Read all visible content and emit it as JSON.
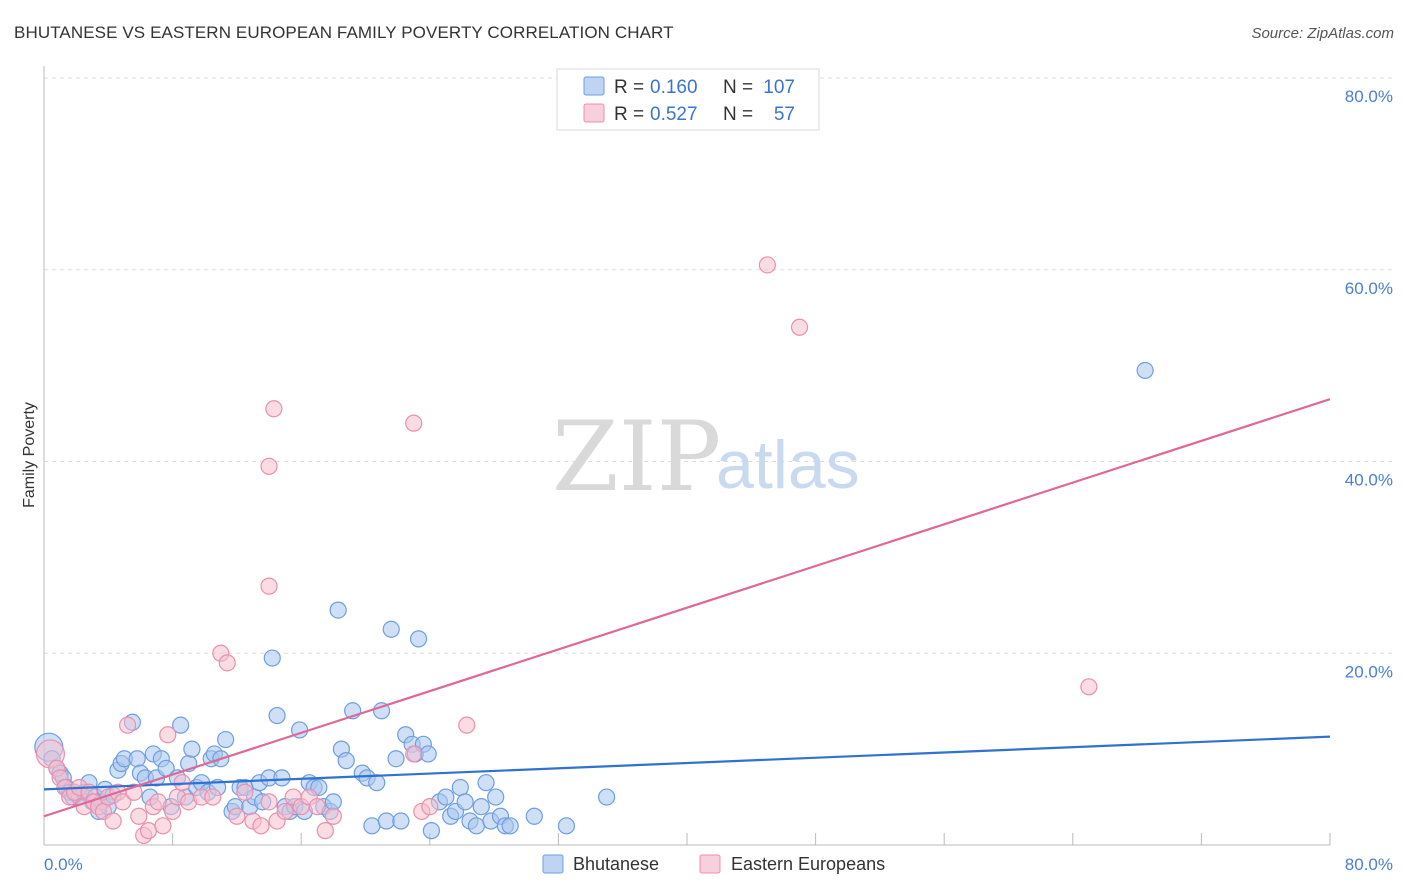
{
  "header": {
    "title": "BHUTANESE VS EASTERN EUROPEAN FAMILY POVERTY CORRELATION CHART",
    "source": "Source: ZipAtlas.com"
  },
  "watermark": {
    "zip": "ZIP",
    "atlas": "atlas"
  },
  "legend": {
    "r_label": "R =",
    "n_label": "N =",
    "rows": [
      {
        "name": "Bhutanese",
        "r": "0.160",
        "n": "107",
        "color": "#9dc0f0"
      },
      {
        "name": "Eastern Europeans",
        "r": "0.527",
        "n": "57",
        "color": "#f5b5c8"
      }
    ]
  },
  "colors": {
    "blue_fill": "#a8c6ee",
    "blue_stroke": "#6f9ee0",
    "blue_line": "#2f72d1",
    "pink_fill": "#f6bfd0",
    "pink_stroke": "#ec8fac",
    "pink_line": "#e06896",
    "tick_label": "#4a7fd4"
  },
  "chart_data": {
    "type": "scatter",
    "title": "BHUTANESE VS EASTERN EUROPEAN FAMILY POVERTY CORRELATION CHART",
    "xlabel": "",
    "ylabel": "Family Poverty",
    "xlim": [
      0,
      80
    ],
    "ylim": [
      0,
      80
    ],
    "x_tick_labels": [
      "0.0%",
      "80.0%"
    ],
    "y_ticks": [
      20,
      40,
      60,
      80
    ],
    "y_tick_labels": [
      "20.0%",
      "40.0%",
      "60.0%",
      "80.0%"
    ],
    "grid": true,
    "legend_position": "top-center",
    "series": [
      {
        "name": "Bhutanese",
        "color": "#a8c6ee",
        "trend": {
          "x0": 0,
          "y0": 5.8,
          "x1": 80,
          "y1": 11.3
        },
        "points": [
          [
            0.3,
            10.2
          ],
          [
            0.5,
            9.0
          ],
          [
            0.8,
            8.0
          ],
          [
            1.0,
            7.5
          ],
          [
            1.2,
            7.0
          ],
          [
            1.4,
            6.0
          ],
          [
            1.6,
            5.5
          ],
          [
            1.8,
            5.0
          ],
          [
            2.0,
            5.3
          ],
          [
            2.2,
            5.0
          ],
          [
            2.5,
            5.5
          ],
          [
            2.8,
            6.5
          ],
          [
            3.0,
            4.5
          ],
          [
            3.2,
            5.0
          ],
          [
            3.4,
            3.5
          ],
          [
            3.6,
            4.5
          ],
          [
            3.8,
            5.8
          ],
          [
            4.0,
            4.0
          ],
          [
            4.3,
            5.2
          ],
          [
            4.6,
            7.8
          ],
          [
            4.8,
            8.5
          ],
          [
            5.0,
            9.0
          ],
          [
            5.5,
            12.8
          ],
          [
            5.8,
            9.0
          ],
          [
            6.0,
            7.5
          ],
          [
            6.3,
            7.0
          ],
          [
            6.6,
            5.0
          ],
          [
            6.8,
            9.5
          ],
          [
            7.0,
            7.0
          ],
          [
            7.3,
            9.0
          ],
          [
            7.6,
            8.0
          ],
          [
            7.9,
            4.0
          ],
          [
            8.3,
            7.0
          ],
          [
            8.5,
            12.5
          ],
          [
            8.8,
            5.0
          ],
          [
            9.0,
            8.5
          ],
          [
            9.2,
            10.0
          ],
          [
            9.5,
            6.0
          ],
          [
            9.8,
            6.5
          ],
          [
            10.2,
            5.5
          ],
          [
            10.4,
            9.0
          ],
          [
            10.6,
            9.5
          ],
          [
            10.8,
            6.0
          ],
          [
            11.0,
            9.0
          ],
          [
            11.3,
            11.0
          ],
          [
            11.7,
            3.5
          ],
          [
            11.9,
            4.0
          ],
          [
            12.2,
            6.0
          ],
          [
            12.5,
            6.0
          ],
          [
            12.8,
            4.0
          ],
          [
            13.1,
            5.0
          ],
          [
            13.4,
            6.5
          ],
          [
            13.6,
            4.5
          ],
          [
            14.0,
            7.0
          ],
          [
            14.2,
            19.5
          ],
          [
            14.5,
            13.5
          ],
          [
            14.8,
            7.0
          ],
          [
            15.0,
            4.0
          ],
          [
            15.3,
            3.5
          ],
          [
            15.6,
            4.0
          ],
          [
            15.9,
            12.0
          ],
          [
            16.2,
            3.5
          ],
          [
            16.5,
            6.5
          ],
          [
            16.8,
            6.0
          ],
          [
            17.1,
            6.0
          ],
          [
            17.4,
            4.0
          ],
          [
            17.8,
            3.5
          ],
          [
            18.0,
            4.5
          ],
          [
            18.3,
            24.5
          ],
          [
            18.5,
            10.0
          ],
          [
            18.8,
            8.8
          ],
          [
            19.2,
            14.0
          ],
          [
            19.8,
            7.5
          ],
          [
            20.1,
            7.0
          ],
          [
            20.4,
            2.0
          ],
          [
            20.7,
            6.5
          ],
          [
            21.0,
            14.0
          ],
          [
            21.3,
            2.5
          ],
          [
            21.6,
            22.5
          ],
          [
            21.9,
            9.0
          ],
          [
            22.2,
            2.5
          ],
          [
            22.5,
            11.5
          ],
          [
            22.9,
            10.5
          ],
          [
            23.1,
            9.5
          ],
          [
            23.3,
            21.5
          ],
          [
            23.6,
            10.5
          ],
          [
            23.9,
            9.5
          ],
          [
            24.1,
            1.5
          ],
          [
            24.6,
            4.5
          ],
          [
            25.0,
            5.0
          ],
          [
            25.3,
            3.0
          ],
          [
            25.6,
            3.5
          ],
          [
            25.9,
            6.0
          ],
          [
            26.2,
            4.5
          ],
          [
            26.5,
            2.5
          ],
          [
            26.9,
            2.0
          ],
          [
            27.2,
            4.0
          ],
          [
            27.5,
            6.5
          ],
          [
            27.8,
            2.5
          ],
          [
            28.1,
            5.0
          ],
          [
            28.4,
            3.0
          ],
          [
            28.7,
            2.0
          ],
          [
            29.0,
            2.0
          ],
          [
            30.5,
            3.0
          ],
          [
            32.5,
            2.0
          ],
          [
            35.0,
            5.0
          ],
          [
            68.5,
            49.5
          ]
        ]
      },
      {
        "name": "Eastern Europeans",
        "color": "#f6bfd0",
        "trend": {
          "x0": 0,
          "y0": 3.0,
          "x1": 80,
          "y1": 46.5
        },
        "points": [
          [
            0.4,
            9.5
          ],
          [
            0.8,
            8.0
          ],
          [
            1.0,
            7.0
          ],
          [
            1.3,
            6.0
          ],
          [
            1.6,
            5.0
          ],
          [
            1.9,
            5.5
          ],
          [
            2.2,
            6.0
          ],
          [
            2.5,
            4.0
          ],
          [
            2.8,
            5.5
          ],
          [
            3.1,
            4.5
          ],
          [
            3.4,
            4.0
          ],
          [
            3.7,
            3.5
          ],
          [
            4.0,
            5.0
          ],
          [
            4.3,
            2.5
          ],
          [
            4.6,
            5.5
          ],
          [
            4.9,
            4.5
          ],
          [
            5.2,
            12.5
          ],
          [
            5.6,
            5.5
          ],
          [
            5.9,
            3.0
          ],
          [
            6.2,
            1.0
          ],
          [
            6.5,
            1.5
          ],
          [
            6.8,
            4.0
          ],
          [
            7.1,
            4.5
          ],
          [
            7.4,
            2.0
          ],
          [
            7.7,
            11.5
          ],
          [
            8.0,
            3.5
          ],
          [
            8.3,
            5.0
          ],
          [
            8.6,
            6.5
          ],
          [
            9.0,
            4.5
          ],
          [
            9.8,
            5.0
          ],
          [
            10.5,
            5.0
          ],
          [
            11.0,
            20.0
          ],
          [
            11.4,
            19.0
          ],
          [
            12.0,
            3.0
          ],
          [
            12.5,
            5.5
          ],
          [
            13.0,
            2.5
          ],
          [
            13.5,
            2.0
          ],
          [
            14.0,
            4.5
          ],
          [
            14.5,
            2.5
          ],
          [
            15.0,
            3.5
          ],
          [
            15.5,
            5.0
          ],
          [
            16.0,
            4.0
          ],
          [
            16.5,
            5.0
          ],
          [
            17.0,
            4.0
          ],
          [
            17.5,
            1.5
          ],
          [
            18.0,
            3.0
          ],
          [
            23.0,
            9.5
          ],
          [
            23.5,
            3.5
          ],
          [
            24.0,
            4.0
          ],
          [
            26.3,
            12.5
          ],
          [
            14.0,
            27.0
          ],
          [
            14.3,
            45.5
          ],
          [
            14.0,
            39.5
          ],
          [
            23.0,
            44.0
          ],
          [
            45.0,
            60.5
          ],
          [
            47.0,
            54.0
          ],
          [
            65.0,
            16.5
          ]
        ]
      }
    ]
  },
  "bottom_legend": [
    "Bhutanese",
    "Eastern Europeans"
  ]
}
